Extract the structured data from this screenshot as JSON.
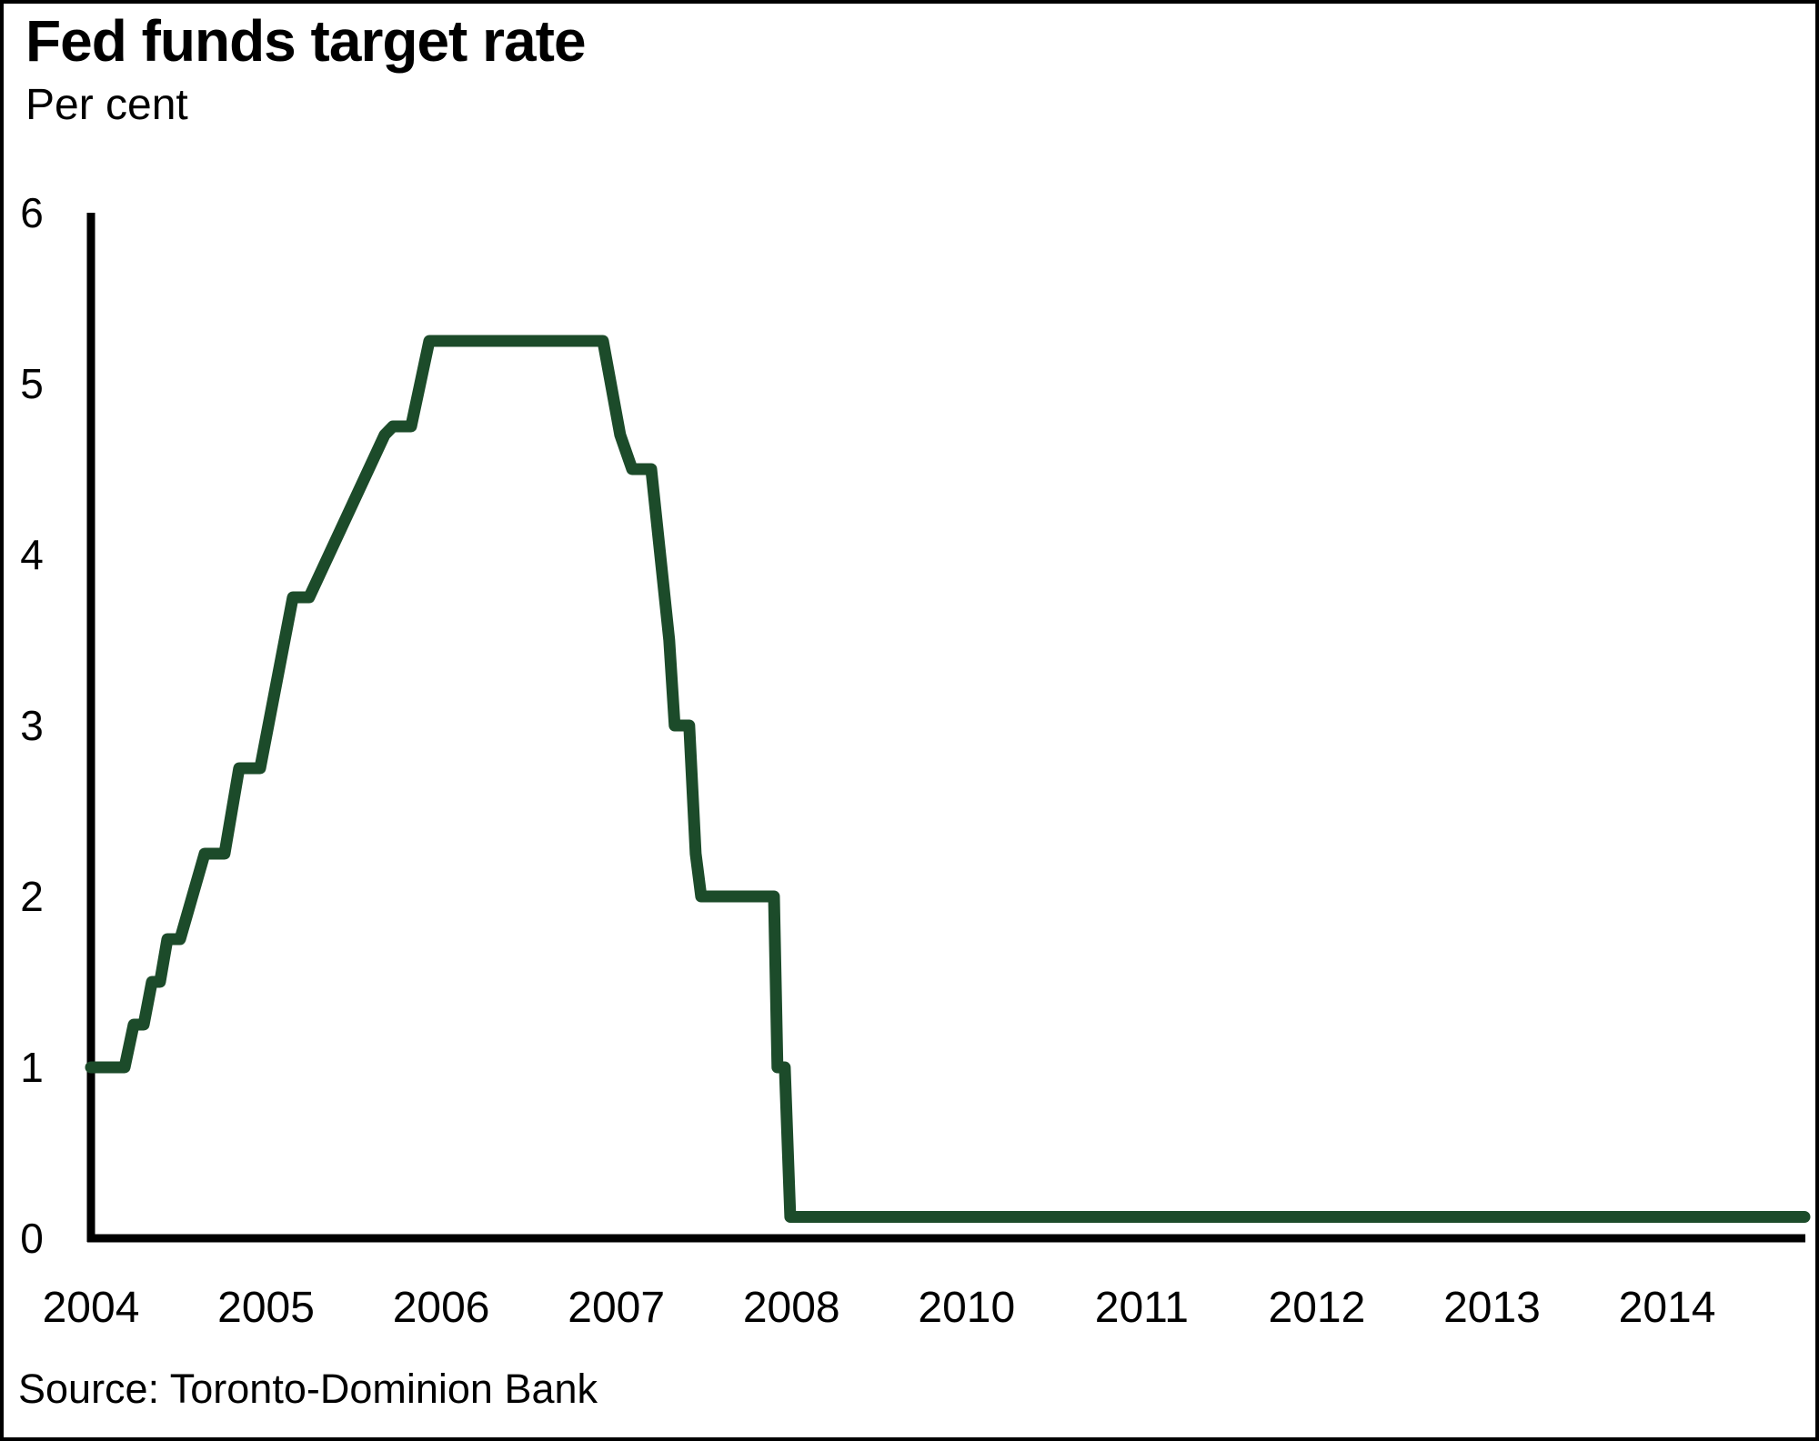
{
  "chart_data": {
    "type": "line",
    "title": "Fed funds target rate",
    "subtitle": "Per cent",
    "source": "Source: Toronto-Dominion Bank",
    "ylim": [
      0,
      6
    ],
    "y_ticks": [
      0,
      1,
      2,
      3,
      4,
      5,
      6
    ],
    "x_labels": [
      "2004",
      "2005",
      "2006",
      "2007",
      "2008",
      "2010",
      "2011",
      "2012",
      "2013",
      "2014"
    ],
    "x_unit_note": "x values are in tick-interval units measured from the 2004 tick; the axis labels skip 2009",
    "grid": "off",
    "legend": "none",
    "axis_color": "#000000",
    "series": [
      {
        "name": "Fed funds target rate",
        "color": "#1c4b2a",
        "points": [
          [
            0.0,
            1.0
          ],
          [
            0.192,
            1.0
          ],
          [
            0.244,
            1.25
          ],
          [
            0.301,
            1.25
          ],
          [
            0.348,
            1.5
          ],
          [
            0.394,
            1.5
          ],
          [
            0.436,
            1.75
          ],
          [
            0.509,
            1.75
          ],
          [
            0.649,
            2.25
          ],
          [
            0.763,
            2.25
          ],
          [
            0.846,
            2.75
          ],
          [
            0.966,
            2.75
          ],
          [
            1.153,
            3.75
          ],
          [
            1.246,
            3.75
          ],
          [
            1.677,
            4.7
          ],
          [
            1.724,
            4.75
          ],
          [
            1.828,
            4.75
          ],
          [
            1.932,
            5.25
          ],
          [
            2.924,
            5.25
          ],
          [
            3.022,
            4.7
          ],
          [
            3.09,
            4.5
          ],
          [
            3.199,
            4.5
          ],
          [
            3.302,
            3.5
          ],
          [
            3.333,
            3.0
          ],
          [
            3.416,
            3.0
          ],
          [
            3.453,
            2.25
          ],
          [
            3.484,
            2.0
          ],
          [
            3.9,
            2.0
          ],
          [
            3.92,
            1.0
          ],
          [
            3.962,
            1.0
          ],
          [
            3.993,
            0.125
          ],
          [
            9.784,
            0.125
          ]
        ]
      }
    ]
  }
}
